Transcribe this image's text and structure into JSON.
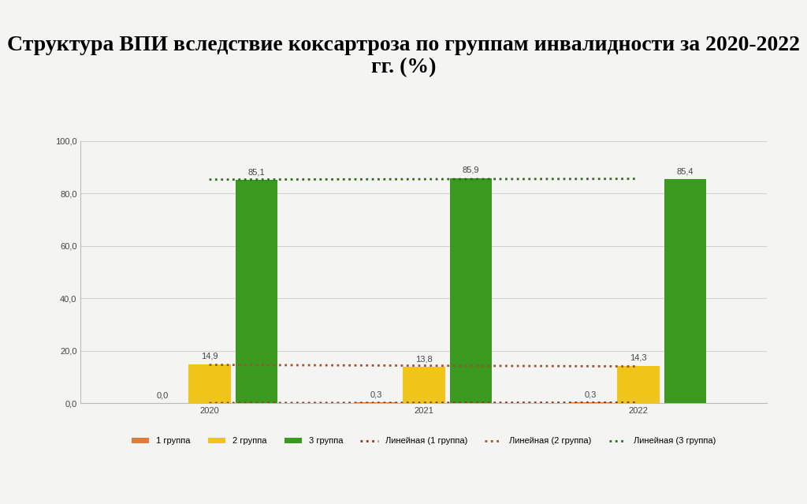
{
  "chart_data": {
    "type": "bar",
    "title": "Структура ВПИ вследствие коксартроза по группам инвалидности за 2020-2022 гг. (%)",
    "categories": [
      "2020",
      "2021",
      "2022"
    ],
    "series": [
      {
        "name": "1 группа",
        "type": "bar",
        "color": "#e07b39",
        "values": [
          0.0,
          0.3,
          0.3
        ],
        "value_labels": [
          "0,0",
          "0,3",
          "0,3"
        ]
      },
      {
        "name": "2 группа",
        "type": "bar",
        "color": "#f0c419",
        "values": [
          14.9,
          13.8,
          14.3
        ],
        "value_labels": [
          "14,9",
          "13,8",
          "14,3"
        ]
      },
      {
        "name": "3 группа",
        "type": "bar",
        "color": "#3a9a1f",
        "values": [
          85.1,
          85.9,
          85.4
        ],
        "value_labels": [
          "85,1",
          "85,9",
          "85,4"
        ]
      },
      {
        "name": "Линейная (1 группа)",
        "type": "line",
        "line_style": "dotted",
        "color": "#8b3a1a",
        "values": [
          0.05,
          0.15,
          0.25
        ]
      },
      {
        "name": "Линейная (2 группа)",
        "type": "line",
        "line_style": "dotted",
        "color": "#a0522d",
        "values": [
          14.63,
          14.33,
          14.03
        ]
      },
      {
        "name": "Линейная (3 группа)",
        "type": "line",
        "line_style": "dotted",
        "color": "#2e6b1a",
        "values": [
          85.32,
          85.47,
          85.62
        ]
      }
    ],
    "ylim": [
      0,
      100
    ],
    "yticks": [
      {
        "value": 0,
        "label": "0,0"
      },
      {
        "value": 20,
        "label": "20,0"
      },
      {
        "value": 40,
        "label": "40,0"
      },
      {
        "value": 60,
        "label": "60,0"
      },
      {
        "value": 80,
        "label": "80,0"
      },
      {
        "value": 100,
        "label": "100,0"
      }
    ],
    "grid": true,
    "data_labels": true,
    "legend": "bottom"
  }
}
